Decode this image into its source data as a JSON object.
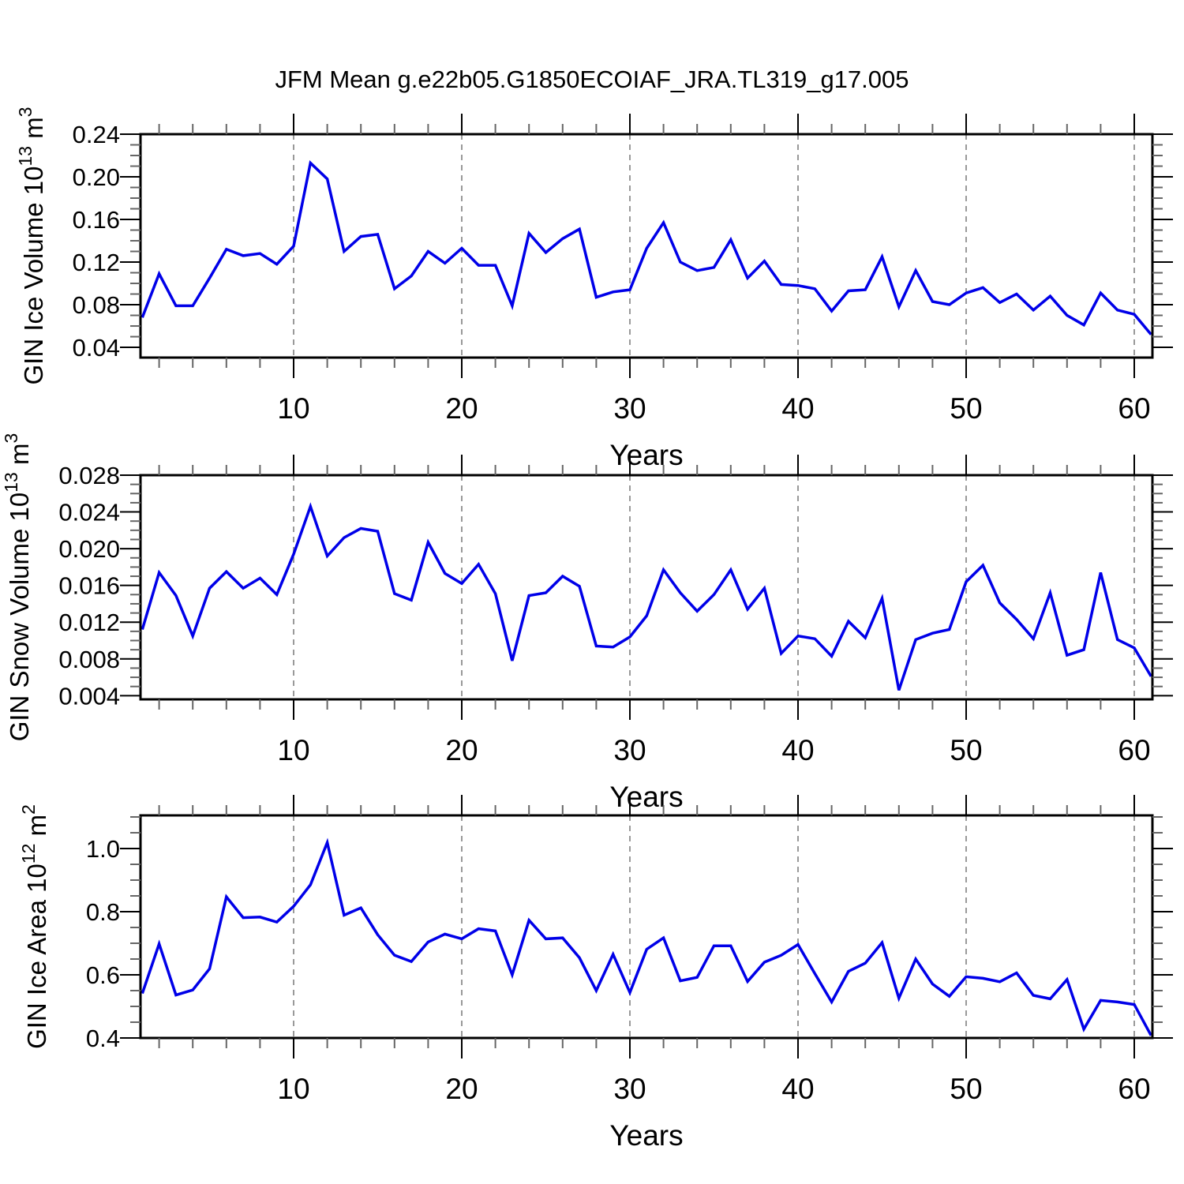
{
  "chart_data": {
    "type": "line",
    "title": "JFM Mean g.e22b05.G1850ECOIAF_JRA.TL319_g17.005",
    "xlabel": "Years",
    "xlim": [
      1,
      61
    ],
    "x_major_ticks": [
      {
        "v": 10,
        "label": "10"
      },
      {
        "v": 20,
        "label": "20"
      },
      {
        "v": 30,
        "label": "30"
      },
      {
        "v": 40,
        "label": "40"
      },
      {
        "v": 50,
        "label": "50"
      },
      {
        "v": 60,
        "label": "60"
      }
    ],
    "x_minor_step": 2,
    "grid": "vertical-dashed-at-major-ticks",
    "legend": "none",
    "line_color": "#0000e8",
    "grid_color": "#999999",
    "panels": [
      {
        "name": "gin-ice-volume",
        "ylabel_text": "GIN Ice Volume 10^13 m^3",
        "ylabel_parts": [
          {
            "t": "GIN Ice Volume 10"
          },
          {
            "t": "13",
            "sup": true
          },
          {
            "t": " m"
          },
          {
            "t": "3",
            "sup": true
          }
        ],
        "yticks": [
          {
            "v": 0.24,
            "label": "0.24"
          },
          {
            "v": 0.2,
            "label": "0.20"
          },
          {
            "v": 0.16,
            "label": "0.16"
          },
          {
            "v": 0.12,
            "label": "0.12"
          },
          {
            "v": 0.08,
            "label": "0.08"
          },
          {
            "v": 0.04,
            "label": "0.04"
          }
        ],
        "y_minor_step": 0.01,
        "ylim_bottom": 0.0304,
        "ylim_top": 0.24,
        "values": [
          0.068,
          0.109,
          0.079,
          0.079,
          0.105,
          0.132,
          0.126,
          0.128,
          0.118,
          0.135,
          0.213,
          0.198,
          0.13,
          0.144,
          0.146,
          0.095,
          0.107,
          0.13,
          0.119,
          0.133,
          0.117,
          0.117,
          0.079,
          0.147,
          0.129,
          0.142,
          0.151,
          0.087,
          0.092,
          0.094,
          0.133,
          0.157,
          0.12,
          0.112,
          0.115,
          0.141,
          0.105,
          0.121,
          0.099,
          0.098,
          0.095,
          0.074,
          0.093,
          0.094,
          0.125,
          0.078,
          0.112,
          0.083,
          0.08,
          0.091,
          0.096,
          0.082,
          0.09,
          0.075,
          0.088,
          0.07,
          0.061,
          0.091,
          0.075,
          0.071,
          0.052
        ]
      },
      {
        "name": "gin-snow-volume",
        "ylabel_text": "GIN Snow Volume 10^13 m^3",
        "ylabel_parts": [
          {
            "t": "GIN Snow Volume 10"
          },
          {
            "t": "13",
            "sup": true
          },
          {
            "t": " m"
          },
          {
            "t": "3",
            "sup": true
          }
        ],
        "yticks": [
          {
            "v": 0.028,
            "label": "0.028"
          },
          {
            "v": 0.024,
            "label": "0.024"
          },
          {
            "v": 0.02,
            "label": "0.020"
          },
          {
            "v": 0.016,
            "label": "0.016"
          },
          {
            "v": 0.012,
            "label": "0.012"
          },
          {
            "v": 0.008,
            "label": "0.008"
          },
          {
            "v": 0.004,
            "label": "0.004"
          }
        ],
        "y_minor_step": 0.001,
        "ylim_bottom": 0.0036,
        "ylim_top": 0.028,
        "values": [
          0.0112,
          0.0174,
          0.0149,
          0.0105,
          0.0157,
          0.0175,
          0.0157,
          0.0168,
          0.015,
          0.0194,
          0.0246,
          0.0192,
          0.0212,
          0.0222,
          0.0219,
          0.0151,
          0.0144,
          0.0207,
          0.0173,
          0.0162,
          0.0183,
          0.0151,
          0.0078,
          0.0149,
          0.0152,
          0.017,
          0.0159,
          0.0094,
          0.0093,
          0.0104,
          0.0127,
          0.0177,
          0.0152,
          0.0132,
          0.015,
          0.0177,
          0.0134,
          0.0157,
          0.0086,
          0.0105,
          0.0102,
          0.0083,
          0.0121,
          0.0103,
          0.0146,
          0.0046,
          0.0101,
          0.0108,
          0.0112,
          0.0164,
          0.0182,
          0.0141,
          0.0123,
          0.0102,
          0.0152,
          0.0084,
          0.009,
          0.0174,
          0.0101,
          0.0092,
          0.0061
        ]
      },
      {
        "name": "gin-ice-area",
        "ylabel_text": "GIN Ice Area 10^12 m^2",
        "ylabel_parts": [
          {
            "t": "GIN Ice Area 10"
          },
          {
            "t": "12",
            "sup": true
          },
          {
            "t": " m"
          },
          {
            "t": "2",
            "sup": true
          }
        ],
        "yticks": [
          {
            "v": 1.0,
            "label": "1.0"
          },
          {
            "v": 0.8,
            "label": "0.8"
          },
          {
            "v": 0.6,
            "label": "0.6"
          },
          {
            "v": 0.4,
            "label": "0.4"
          }
        ],
        "y_minor_step": 0.05,
        "ylim_bottom": 0.4,
        "ylim_top": 1.105,
        "values": [
          0.541,
          0.698,
          0.536,
          0.552,
          0.619,
          0.847,
          0.781,
          0.783,
          0.767,
          0.817,
          0.885,
          1.019,
          0.789,
          0.812,
          0.727,
          0.662,
          0.642,
          0.704,
          0.729,
          0.714,
          0.746,
          0.739,
          0.6,
          0.773,
          0.714,
          0.717,
          0.654,
          0.55,
          0.665,
          0.544,
          0.681,
          0.717,
          0.581,
          0.592,
          0.692,
          0.692,
          0.579,
          0.64,
          0.662,
          0.696,
          0.604,
          0.514,
          0.611,
          0.637,
          0.702,
          0.526,
          0.65,
          0.571,
          0.532,
          0.594,
          0.589,
          0.578,
          0.606,
          0.535,
          0.524,
          0.585,
          0.428,
          0.519,
          0.514,
          0.506,
          0.408
        ]
      }
    ]
  }
}
